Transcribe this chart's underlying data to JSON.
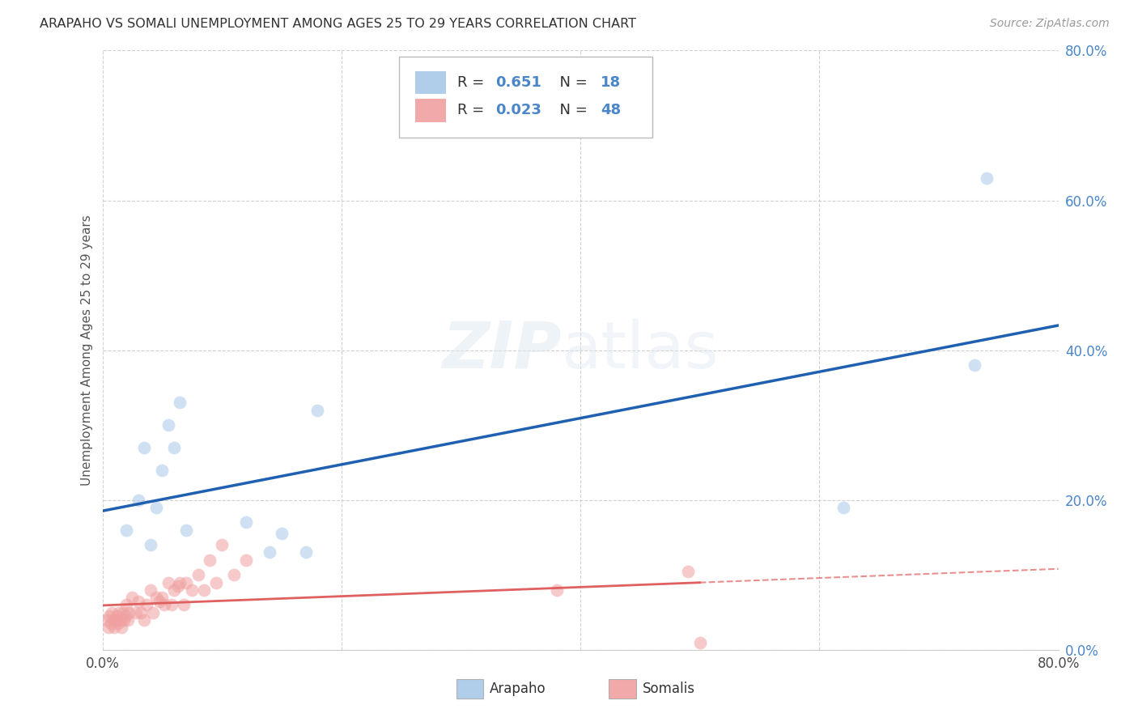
{
  "title": "ARAPAHO VS SOMALI UNEMPLOYMENT AMONG AGES 25 TO 29 YEARS CORRELATION CHART",
  "source": "Source: ZipAtlas.com",
  "ylabel": "Unemployment Among Ages 25 to 29 years",
  "xlim": [
    0.0,
    0.8
  ],
  "ylim": [
    0.0,
    0.8
  ],
  "xtick_labels_outer": [
    "0.0%",
    "80.0%"
  ],
  "xtick_values_outer": [
    0.0,
    0.8
  ],
  "ytick_labels": [
    "0.0%",
    "20.0%",
    "40.0%",
    "60.0%",
    "80.0%"
  ],
  "ytick_values": [
    0.0,
    0.2,
    0.4,
    0.6,
    0.8
  ],
  "arapaho_color": "#a8c8e8",
  "somali_color": "#f0a0a0",
  "arapaho_line_color": "#2060b0",
  "somali_line_color": "#e06060",
  "arapaho_R": 0.651,
  "arapaho_N": 18,
  "somali_R": 0.023,
  "somali_N": 48,
  "legend_label_arapaho": "Arapaho",
  "legend_label_somali": "Somalis",
  "arapaho_x": [
    0.02,
    0.03,
    0.035,
    0.04,
    0.045,
    0.05,
    0.055,
    0.06,
    0.065,
    0.07,
    0.12,
    0.14,
    0.15,
    0.17,
    0.18,
    0.62,
    0.73,
    0.74
  ],
  "arapaho_y": [
    0.16,
    0.2,
    0.27,
    0.14,
    0.19,
    0.24,
    0.3,
    0.27,
    0.33,
    0.16,
    0.17,
    0.13,
    0.155,
    0.13,
    0.32,
    0.19,
    0.38,
    0.63
  ],
  "somali_x": [
    0.004,
    0.005,
    0.006,
    0.007,
    0.008,
    0.009,
    0.01,
    0.011,
    0.012,
    0.013,
    0.014,
    0.015,
    0.016,
    0.017,
    0.018,
    0.019,
    0.02,
    0.021,
    0.022,
    0.025,
    0.028,
    0.03,
    0.032,
    0.035,
    0.037,
    0.04,
    0.042,
    0.045,
    0.048,
    0.05,
    0.052,
    0.055,
    0.058,
    0.06,
    0.063,
    0.065,
    0.068,
    0.07,
    0.075,
    0.08,
    0.085,
    0.09,
    0.095,
    0.1,
    0.11,
    0.12,
    0.38,
    0.49
  ],
  "somali_y": [
    0.04,
    0.03,
    0.045,
    0.035,
    0.05,
    0.04,
    0.03,
    0.04,
    0.045,
    0.035,
    0.05,
    0.04,
    0.03,
    0.05,
    0.04,
    0.045,
    0.06,
    0.04,
    0.05,
    0.07,
    0.05,
    0.065,
    0.05,
    0.04,
    0.06,
    0.08,
    0.05,
    0.07,
    0.065,
    0.07,
    0.06,
    0.09,
    0.06,
    0.08,
    0.085,
    0.09,
    0.06,
    0.09,
    0.08,
    0.1,
    0.08,
    0.12,
    0.09,
    0.14,
    0.1,
    0.12,
    0.08,
    0.105
  ],
  "somali_extra_x": [
    0.5
  ],
  "somali_extra_y": [
    0.01
  ],
  "background_color": "#ffffff",
  "grid_color": "#cccccc",
  "marker_size": 130,
  "marker_alpha": 0.55,
  "solid_line_end": 0.5
}
